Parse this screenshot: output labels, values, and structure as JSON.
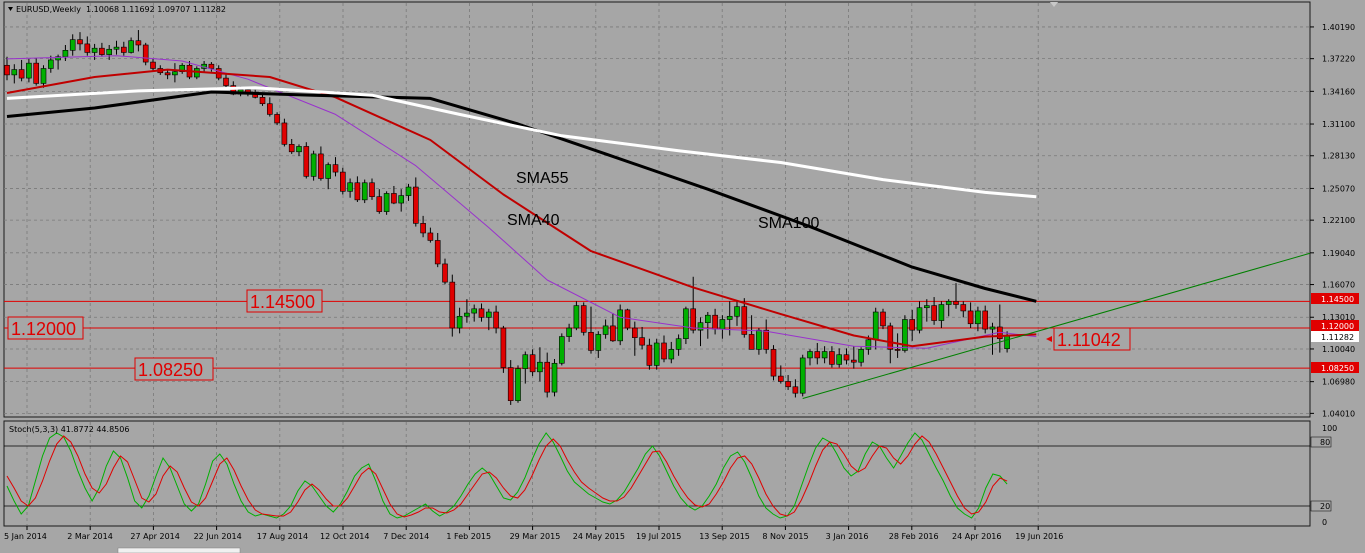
{
  "header": {
    "symbol_label": "EURUSD,Weekly",
    "ohlc_label": "1.10068 1.11692 1.09707 1.11282",
    "stoch_label": "Stoch(5,3,3) 41.8772 44.8506"
  },
  "colors": {
    "background": "#a6a6a6",
    "bull": "#00b000",
    "bear": "#e00000",
    "sma40": "#9932cc",
    "sma55": "#c00000",
    "sma100": "#000000",
    "sma200": "#ffffff",
    "grid": "#7a7a7a",
    "trendline": "#008000",
    "stoch_main": "#00b000",
    "stoch_signal": "#e00000"
  },
  "annotations": {
    "sma55": "SMA55",
    "sma40": "SMA40",
    "sma100": "SMA100",
    "level_1_1450": "1.14500",
    "level_1_1200": "1.12000",
    "level_1_0825": "1.08250",
    "current_price": "1.11042"
  },
  "right_tags": {
    "t1": "1.14500",
    "t2": "1.12000",
    "t3": "1.11282",
    "t4": "1.08250"
  },
  "stoch_axis": {
    "top": "100",
    "l80": "80",
    "l20": "20",
    "zero": "0"
  },
  "chart_data": {
    "type": "candlestick",
    "symbol": "EURUSD",
    "timeframe": "Weekly",
    "last_bar": {
      "open": 1.10068,
      "high": 1.11692,
      "low": 1.09707,
      "close": 1.11282
    },
    "ylim": [
      1.0367,
      1.4215
    ],
    "y_ticks": [
      "1.40190",
      "1.37220",
      "1.34160",
      "1.31100",
      "1.28130",
      "1.25070",
      "1.22100",
      "1.19040",
      "1.16070",
      "1.13010",
      "1.10040",
      "1.06980",
      "1.04010"
    ],
    "x_ticks": [
      "5 Jan 2014",
      "2 Mar 2014",
      "27 Apr 2014",
      "22 Jun 2014",
      "17 Aug 2014",
      "12 Oct 2014",
      "7 Dec 2014",
      "1 Feb 2015",
      "29 Mar 2015",
      "24 May 2015",
      "19 Jul 2015",
      "13 Sep 2015",
      "8 Nov 2015",
      "3 Jan 2016",
      "28 Feb 2016",
      "24 Apr 2016",
      "19 Jun 2016"
    ],
    "candles": [
      [
        1.366,
        1.374,
        1.352,
        1.357
      ],
      [
        1.357,
        1.367,
        1.349,
        1.362
      ],
      [
        1.362,
        1.371,
        1.351,
        1.354
      ],
      [
        1.354,
        1.372,
        1.35,
        1.368
      ],
      [
        1.368,
        1.373,
        1.347,
        1.349
      ],
      [
        1.349,
        1.366,
        1.345,
        1.363
      ],
      [
        1.363,
        1.375,
        1.359,
        1.371
      ],
      [
        1.371,
        1.376,
        1.362,
        1.374
      ],
      [
        1.374,
        1.385,
        1.37,
        1.38
      ],
      [
        1.38,
        1.395,
        1.375,
        1.39
      ],
      [
        1.39,
        1.397,
        1.38,
        1.386
      ],
      [
        1.386,
        1.393,
        1.375,
        1.378
      ],
      [
        1.378,
        1.386,
        1.371,
        1.382
      ],
      [
        1.382,
        1.387,
        1.374,
        1.376
      ],
      [
        1.376,
        1.385,
        1.371,
        1.381
      ],
      [
        1.381,
        1.389,
        1.376,
        1.383
      ],
      [
        1.383,
        1.388,
        1.375,
        1.378
      ],
      [
        1.378,
        1.392,
        1.377,
        1.389
      ],
      [
        1.389,
        1.399,
        1.379,
        1.385
      ],
      [
        1.385,
        1.387,
        1.366,
        1.369
      ],
      [
        1.369,
        1.372,
        1.36,
        1.363
      ],
      [
        1.363,
        1.366,
        1.357,
        1.359
      ],
      [
        1.359,
        1.362,
        1.353,
        1.357
      ],
      [
        1.357,
        1.368,
        1.35,
        1.36
      ],
      [
        1.36,
        1.368,
        1.358,
        1.366
      ],
      [
        1.366,
        1.37,
        1.353,
        1.355
      ],
      [
        1.355,
        1.365,
        1.353,
        1.363
      ],
      [
        1.363,
        1.37,
        1.36,
        1.367
      ],
      [
        1.367,
        1.369,
        1.36,
        1.363
      ],
      [
        1.363,
        1.366,
        1.352,
        1.354
      ],
      [
        1.354,
        1.358,
        1.345,
        1.347
      ],
      [
        1.347,
        1.351,
        1.338,
        1.339
      ],
      [
        1.339,
        1.346,
        1.337,
        1.343
      ],
      [
        1.343,
        1.346,
        1.337,
        1.339
      ],
      [
        1.339,
        1.343,
        1.335,
        1.336
      ],
      [
        1.336,
        1.339,
        1.328,
        1.33
      ],
      [
        1.33,
        1.336,
        1.318,
        1.32
      ],
      [
        1.32,
        1.322,
        1.31,
        1.312
      ],
      [
        1.312,
        1.316,
        1.29,
        1.292
      ],
      [
        1.292,
        1.297,
        1.283,
        1.285
      ],
      [
        1.285,
        1.292,
        1.281,
        1.29
      ],
      [
        1.29,
        1.294,
        1.26,
        1.262
      ],
      [
        1.262,
        1.286,
        1.258,
        1.283
      ],
      [
        1.283,
        1.29,
        1.258,
        1.26
      ],
      [
        1.26,
        1.275,
        1.25,
        1.273
      ],
      [
        1.273,
        1.28,
        1.262,
        1.266
      ],
      [
        1.266,
        1.27,
        1.245,
        1.248
      ],
      [
        1.248,
        1.26,
        1.242,
        1.256
      ],
      [
        1.256,
        1.262,
        1.238,
        1.24
      ],
      [
        1.24,
        1.259,
        1.237,
        1.256
      ],
      [
        1.256,
        1.26,
        1.24,
        1.243
      ],
      [
        1.243,
        1.25,
        1.227,
        1.229
      ],
      [
        1.229,
        1.248,
        1.226,
        1.246
      ],
      [
        1.246,
        1.253,
        1.236,
        1.237
      ],
      [
        1.237,
        1.25,
        1.229,
        1.244
      ],
      [
        1.244,
        1.255,
        1.239,
        1.252
      ],
      [
        1.252,
        1.261,
        1.215,
        1.218
      ],
      [
        1.218,
        1.225,
        1.205,
        1.209
      ],
      [
        1.209,
        1.214,
        1.2,
        1.202
      ],
      [
        1.202,
        1.209,
        1.177,
        1.18
      ],
      [
        1.18,
        1.185,
        1.161,
        1.163
      ],
      [
        1.163,
        1.17,
        1.112,
        1.12
      ],
      [
        1.12,
        1.139,
        1.115,
        1.131
      ],
      [
        1.131,
        1.147,
        1.125,
        1.134
      ],
      [
        1.134,
        1.142,
        1.126,
        1.138
      ],
      [
        1.138,
        1.143,
        1.126,
        1.13
      ],
      [
        1.13,
        1.138,
        1.118,
        1.135
      ],
      [
        1.135,
        1.141,
        1.115,
        1.12
      ],
      [
        1.12,
        1.122,
        1.078,
        1.083
      ],
      [
        1.083,
        1.09,
        1.048,
        1.052
      ],
      [
        1.052,
        1.085,
        1.05,
        1.082
      ],
      [
        1.082,
        1.098,
        1.068,
        1.095
      ],
      [
        1.095,
        1.1,
        1.075,
        1.079
      ],
      [
        1.079,
        1.102,
        1.07,
        1.088
      ],
      [
        1.088,
        1.097,
        1.055,
        1.06
      ],
      [
        1.06,
        1.091,
        1.056,
        1.087
      ],
      [
        1.087,
        1.115,
        1.085,
        1.112
      ],
      [
        1.112,
        1.124,
        1.107,
        1.12
      ],
      [
        1.12,
        1.145,
        1.118,
        1.141
      ],
      [
        1.141,
        1.144,
        1.113,
        1.116
      ],
      [
        1.116,
        1.14,
        1.096,
        1.099
      ],
      [
        1.099,
        1.117,
        1.092,
        1.114
      ],
      [
        1.114,
        1.128,
        1.11,
        1.122
      ],
      [
        1.122,
        1.134,
        1.107,
        1.108
      ],
      [
        1.108,
        1.142,
        1.104,
        1.137
      ],
      [
        1.137,
        1.138,
        1.118,
        1.12
      ],
      [
        1.12,
        1.126,
        1.094,
        1.111
      ],
      [
        1.111,
        1.121,
        1.1,
        1.104
      ],
      [
        1.104,
        1.11,
        1.081,
        1.085
      ],
      [
        1.085,
        1.11,
        1.081,
        1.106
      ],
      [
        1.106,
        1.113,
        1.088,
        1.091
      ],
      [
        1.091,
        1.107,
        1.087,
        1.1
      ],
      [
        1.1,
        1.114,
        1.094,
        1.11
      ],
      [
        1.11,
        1.14,
        1.105,
        1.138
      ],
      [
        1.138,
        1.168,
        1.115,
        1.118
      ],
      [
        1.118,
        1.13,
        1.103,
        1.125
      ],
      [
        1.125,
        1.135,
        1.11,
        1.132
      ],
      [
        1.132,
        1.138,
        1.114,
        1.119
      ],
      [
        1.119,
        1.132,
        1.11,
        1.128
      ],
      [
        1.128,
        1.145,
        1.113,
        1.131
      ],
      [
        1.131,
        1.146,
        1.122,
        1.14
      ],
      [
        1.14,
        1.148,
        1.111,
        1.114
      ],
      [
        1.114,
        1.132,
        1.101,
        1.1
      ],
      [
        1.1,
        1.12,
        1.095,
        1.118
      ],
      [
        1.118,
        1.128,
        1.096,
        1.1
      ],
      [
        1.1,
        1.104,
        1.071,
        1.075
      ],
      [
        1.075,
        1.085,
        1.068,
        1.07
      ],
      [
        1.07,
        1.076,
        1.062,
        1.065
      ],
      [
        1.065,
        1.072,
        1.055,
        1.059
      ],
      [
        1.059,
        1.095,
        1.056,
        1.092
      ],
      [
        1.092,
        1.1,
        1.085,
        1.098
      ],
      [
        1.098,
        1.106,
        1.086,
        1.092
      ],
      [
        1.092,
        1.103,
        1.087,
        1.098
      ],
      [
        1.098,
        1.103,
        1.083,
        1.086
      ],
      [
        1.086,
        1.101,
        1.083,
        1.095
      ],
      [
        1.095,
        1.101,
        1.086,
        1.09
      ],
      [
        1.09,
        1.103,
        1.082,
        1.088
      ],
      [
        1.088,
        1.102,
        1.084,
        1.1
      ],
      [
        1.1,
        1.113,
        1.095,
        1.109
      ],
      [
        1.109,
        1.139,
        1.1,
        1.135
      ],
      [
        1.135,
        1.138,
        1.119,
        1.122
      ],
      [
        1.122,
        1.125,
        1.087,
        1.1
      ],
      [
        1.1,
        1.115,
        1.092,
        1.099
      ],
      [
        1.099,
        1.132,
        1.097,
        1.128
      ],
      [
        1.128,
        1.137,
        1.108,
        1.118
      ],
      [
        1.118,
        1.145,
        1.115,
        1.139
      ],
      [
        1.139,
        1.147,
        1.126,
        1.141
      ],
      [
        1.141,
        1.149,
        1.123,
        1.127
      ],
      [
        1.127,
        1.145,
        1.12,
        1.142
      ],
      [
        1.142,
        1.147,
        1.131,
        1.145
      ],
      [
        1.145,
        1.162,
        1.138,
        1.142
      ],
      [
        1.142,
        1.145,
        1.13,
        1.136
      ],
      [
        1.136,
        1.144,
        1.12,
        1.124
      ],
      [
        1.124,
        1.14,
        1.117,
        1.136
      ],
      [
        1.136,
        1.141,
        1.115,
        1.119
      ],
      [
        1.119,
        1.125,
        1.095,
        1.121
      ],
      [
        1.121,
        1.142,
        1.097,
        1.11
      ],
      [
        1.10068,
        1.11692,
        1.09707,
        1.11282
      ]
    ],
    "sma_series": [
      {
        "name": "SMA40",
        "color": "#9932cc",
        "points": [
          [
            0,
            1.372
          ],
          [
            15,
            1.375
          ],
          [
            24,
            1.37
          ],
          [
            33,
            1.353
          ],
          [
            45,
            1.32
          ],
          [
            56,
            1.272
          ],
          [
            66,
            1.214
          ],
          [
            74,
            1.165
          ],
          [
            84,
            1.13
          ],
          [
            94,
            1.12
          ],
          [
            104,
            1.117
          ],
          [
            116,
            1.103
          ],
          [
            126,
            1.101
          ],
          [
            136,
            1.116
          ],
          [
            141,
            1.112
          ]
        ]
      },
      {
        "name": "SMA55",
        "color": "#c00000",
        "points": [
          [
            0,
            1.34
          ],
          [
            12,
            1.355
          ],
          [
            22,
            1.362
          ],
          [
            36,
            1.355
          ],
          [
            45,
            1.336
          ],
          [
            58,
            1.296
          ],
          [
            68,
            1.245
          ],
          [
            80,
            1.192
          ],
          [
            94,
            1.158
          ],
          [
            106,
            1.133
          ],
          [
            116,
            1.113
          ],
          [
            124,
            1.103
          ],
          [
            134,
            1.112
          ],
          [
            141,
            1.114
          ]
        ]
      },
      {
        "name": "SMA100",
        "color": "#000000",
        "points": [
          [
            0,
            1.318
          ],
          [
            12,
            1.326
          ],
          [
            28,
            1.341
          ],
          [
            42,
            1.338
          ],
          [
            58,
            1.335
          ],
          [
            70,
            1.311
          ],
          [
            82,
            1.283
          ],
          [
            96,
            1.25
          ],
          [
            110,
            1.215
          ],
          [
            124,
            1.177
          ],
          [
            134,
            1.157
          ],
          [
            141,
            1.145
          ]
        ]
      },
      {
        "name": "SMA200",
        "color": "#ffffff",
        "points": [
          [
            0,
            1.335
          ],
          [
            18,
            1.342
          ],
          [
            34,
            1.345
          ],
          [
            50,
            1.338
          ],
          [
            62,
            1.32
          ],
          [
            76,
            1.3
          ],
          [
            92,
            1.286
          ],
          [
            106,
            1.275
          ],
          [
            120,
            1.259
          ],
          [
            134,
            1.247
          ],
          [
            141,
            1.243
          ]
        ]
      }
    ],
    "horizontal_levels": [
      1.145,
      1.12,
      1.0825
    ],
    "trendline": {
      "from": [
        109,
        1.054
      ],
      "to": [
        182,
        1.19
      ]
    },
    "stochastic": {
      "name": "Stoch(5,3,3)",
      "ylim": [
        0,
        100
      ],
      "levels": [
        20,
        80
      ],
      "main": [
        40,
        25,
        12,
        20,
        45,
        70,
        88,
        93,
        89,
        75,
        55,
        38,
        25,
        38,
        60,
        75,
        68,
        48,
        25,
        18,
        30,
        50,
        68,
        58,
        40,
        22,
        15,
        22,
        42,
        65,
        72,
        62,
        42,
        25,
        14,
        10,
        12,
        10,
        8,
        12,
        20,
        35,
        45,
        40,
        30,
        20,
        14,
        22,
        35,
        50,
        58,
        62,
        45,
        25,
        12,
        8,
        10,
        14,
        18,
        22,
        15,
        10,
        14,
        20,
        30,
        42,
        52,
        58,
        52,
        40,
        28,
        26,
        34,
        48,
        66,
        82,
        93,
        84,
        70,
        55,
        44,
        38,
        32,
        28,
        24,
        22,
        26,
        34,
        46,
        58,
        72,
        80,
        70,
        55,
        40,
        28,
        20,
        16,
        20,
        30,
        42,
        58,
        70,
        74,
        64,
        48,
        30,
        18,
        12,
        8,
        10,
        20,
        40,
        60,
        78,
        88,
        84,
        72,
        58,
        50,
        55,
        72,
        84,
        80,
        68,
        58,
        70,
        83,
        93,
        86,
        72,
        58,
        45,
        30,
        18,
        12,
        8,
        18,
        38,
        52,
        50,
        41.9
      ],
      "signal": [
        50,
        38,
        25,
        20,
        28,
        45,
        65,
        82,
        90,
        84,
        70,
        52,
        38,
        33,
        42,
        58,
        70,
        64,
        46,
        28,
        24,
        32,
        50,
        60,
        54,
        38,
        24,
        20,
        28,
        45,
        62,
        68,
        56,
        40,
        26,
        16,
        12,
        11,
        10,
        10,
        14,
        24,
        36,
        42,
        36,
        27,
        20,
        20,
        28,
        40,
        52,
        58,
        52,
        37,
        22,
        12,
        9,
        11,
        14,
        18,
        18,
        14,
        13,
        16,
        22,
        32,
        42,
        52,
        54,
        48,
        38,
        30,
        28,
        36,
        50,
        66,
        80,
        87,
        80,
        66,
        54,
        44,
        38,
        33,
        28,
        25,
        25,
        29,
        38,
        50,
        62,
        74,
        75,
        64,
        50,
        38,
        28,
        21,
        19,
        22,
        32,
        44,
        58,
        68,
        70,
        62,
        48,
        32,
        20,
        12,
        10,
        14,
        26,
        42,
        60,
        76,
        84,
        82,
        72,
        60,
        54,
        58,
        70,
        80,
        78,
        68,
        62,
        70,
        82,
        90,
        84,
        72,
        58,
        44,
        30,
        18,
        12,
        14,
        24,
        40,
        48,
        44.9
      ]
    }
  }
}
